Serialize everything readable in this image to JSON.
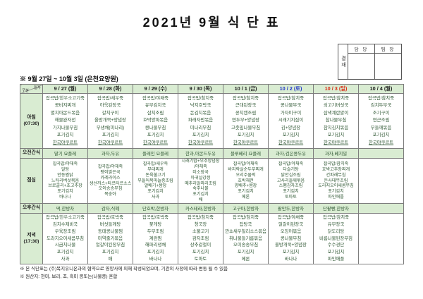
{
  "title": "2021년 9월 식 단 표",
  "subtitle": "※ 9월 27일 ~ 10월 3일 (은천요양원)",
  "approval": {
    "label": "결재",
    "col1": "담 당",
    "col2": "팀 장"
  },
  "underline_item": "한국야쿠르트",
  "table": {
    "corner": {
      "top": "일자",
      "bottom": "구분"
    },
    "dates": [
      {
        "label": "9 / 27 (월)",
        "color": "#1d1d1d"
      },
      {
        "label": "9 / 28 (화)",
        "color": "#1d1d1d"
      },
      {
        "label": "9 / 29 (수)",
        "color": "#1d1d1d"
      },
      {
        "label": "9 / 30 (목)",
        "color": "#1d1d1d"
      },
      {
        "label": "10 / 1 (금)",
        "color": "#1d1d1d"
      },
      {
        "label": "10 / 2 (토)",
        "color": "#2337c8"
      },
      {
        "label": "10 / 3 (일)",
        "color": "#d92d16"
      },
      {
        "label": "10 / 4 (월)",
        "color": "#1d1d1d"
      }
    ],
    "rows": [
      {
        "kind": "breakfast",
        "label": "아침",
        "sub": "(07:30)",
        "cells": [
          [
            "잡곡밥/한우소고기죽",
            "콩비지찌개",
            "멸치아몬드볶음",
            "해물완자전",
            "가지나물무침",
            "포기김치",
            "한국야쿠르트"
          ],
          [
            "잡곡밥/새우죽",
            "아욱된장국",
            "갈치구이",
            "올방개묵+양념장",
            "무생채(미나리)",
            "포기김치",
            "한국야쿠르트"
          ],
          [
            "잡곡밥/야채죽",
            "유부김치국",
            "삼치조림",
            "호박양파볶음",
            "콩나물무침",
            "포기김치",
            "한국야쿠르트"
          ],
          [
            "잡곡밥/참치죽",
            "낙지호박국",
            "돈김치볶음",
            "파래자반볶음",
            "미나리무침",
            "포기김치",
            "한국야쿠르트"
          ],
          [
            "잡곡밥/참치죽",
            "근대된장국",
            "꽁치캔조림",
            "연두부+양념장",
            "고춧잎나물무침",
            "포기김치",
            "한국야쿠르트"
          ],
          [
            "잡곡밥/참치죽",
            "콩나물무국",
            "가자미구이",
            "시래기지짐이",
            "김+양념장",
            "포기김치",
            "한국야쿠르트"
          ],
          [
            "잡곡밥/참치죽",
            "쇠고기버섯국",
            "삼색계란말이",
            "참나물무침",
            "참치김치볶음",
            "포기김치",
            "한국야쿠르트"
          ],
          [
            "잡곡밥/참치죽",
            "김치두부국",
            "조기구이",
            "연근조림",
            "무들깨볶음",
            "포기김치",
            "한국야쿠르트"
          ]
        ]
      },
      {
        "kind": "amsnack",
        "label": "오전간식",
        "sub": "",
        "cells": [
          [
            "딸기 요플레"
          ],
          [
            "과자,두유"
          ],
          [
            "플레인 요플레"
          ],
          [
            "한과,아몬드두유"
          ],
          [
            "블루베리 요플레"
          ],
          [
            "과자,검은콩두유"
          ],
          [
            "과자,베지밀"
          ],
          []
        ]
      },
      {
        "kind": "lunch",
        "label": "점심",
        "sub": "",
        "cells": [
          [
            "잡곡밥/야채죽",
            "알탕",
            "안동찜닭",
            "느타리버섯볶음",
            "브로콜리+초고추장",
            "포기김치",
            "바나나"
          ],
          [
            "잡곡밥/야채죽",
            "팽이맑은국",
            "카레라이스",
            "생선까스+타르타르소스",
            "오이송송무침",
            "복숭아"
          ],
          [
            "잡곡밥/새우죽",
            "부대찌개",
            "돈육불고기",
            "부들어묵마늘종조림",
            "알배기+쌈장",
            "포기김치",
            "사과"
          ],
          [
            "시래기밥+부추양념장",
            "/야채죽",
            "미소장국",
            "아귀살강정",
            "메추리알꽈리조림",
            "숙주나물",
            "포기김치",
            "배"
          ],
          [
            "잡곡밥/야채죽",
            "바지락살순두부찌개",
            "오리주물럭",
            "호박채전",
            "양배추+쌈장",
            "포기김치",
            "메론"
          ],
          [
            "잡곡밥/야채죽",
            "다슬기탕",
            "닭안심조림",
            "고사리들깨볶음",
            "스팸감자조림",
            "포기김치",
            "토마토"
          ],
          [
            "잡곡밥/참치죽",
            "호박고추장찌개",
            "건파래무침",
            "돈사태무조림",
            "도라지오이새콤무침",
            "포기김치",
            "파인애플"
          ],
          []
        ]
      },
      {
        "kind": "pmsnack",
        "label": "오후간식",
        "sub": "",
        "cells": [
          [
            "떡,한방차"
          ],
          [
            "감자,식혜"
          ],
          [
            "단호박,한방차"
          ],
          [
            "카스테라,한방차"
          ],
          [
            "고구마,한방차"
          ],
          [
            "팥만두,한방차"
          ],
          [
            "단팥빵,한방차"
          ],
          []
        ]
      },
      {
        "kind": "dinner",
        "label": "저녁",
        "sub": "(17:30)",
        "cells": [
          [
            "잡곡밥/한우소고기죽",
            "김치수제비국",
            "우육장조림",
            "도라지오이새콤무침",
            "시금치나물",
            "포기김치",
            "사과"
          ],
          [
            "잡곡밥/호박죽",
            "버섯들깨탕",
            "동태콩나물찜",
            "미역줄기볶음",
            "얼갈이된장무침",
            "포기김치",
            "배"
          ],
          [
            "잡곡밥/호박죽",
            "꽃게탕",
            "두부조림",
            "계란찜",
            "해파리냉채",
            "포기김치",
            "바나나"
          ],
          [
            "잡곡밥/참치죽",
            "청국장",
            "소불고기",
            "감자조림",
            "상추겉절이",
            "포기김치",
            "토마토"
          ],
          [
            "잡곡밥/참치죽",
            "잡탕국",
            "깐쇼새우칠리소스볶음",
            "취나물들기름볶음",
            "오이송송무침",
            "포기김치",
            "메론"
          ],
          [
            "잡곡밥/야채죽",
            "얼갈이된장국",
            "오징어볶음",
            "콩나물무침",
            "올방개묵+양념장",
            "포기김치",
            "바나나"
          ],
          [
            "잡곡밥/참치죽",
            "유부장국",
            "닭도리탕",
            "비름나물된장무침",
            "수수경단",
            "포기김치",
            "파인애플"
          ],
          []
        ]
      }
    ]
  },
  "footnotes": [
    "※ 본 식단표는 (주)복지유니온과의 협약으로 영양사에 의해 작성되었으며, 기관의 사정에 따라 변동 될 수 있음",
    "※ 원산지: 현미, 보리, 조, 흑미 콩또는(나물콩) 혼합"
  ],
  "colors": {
    "header_bg": "#d9ecd2",
    "menu_text": "#2f5733",
    "saturday": "#2337c8",
    "sunday": "#d92d16"
  }
}
